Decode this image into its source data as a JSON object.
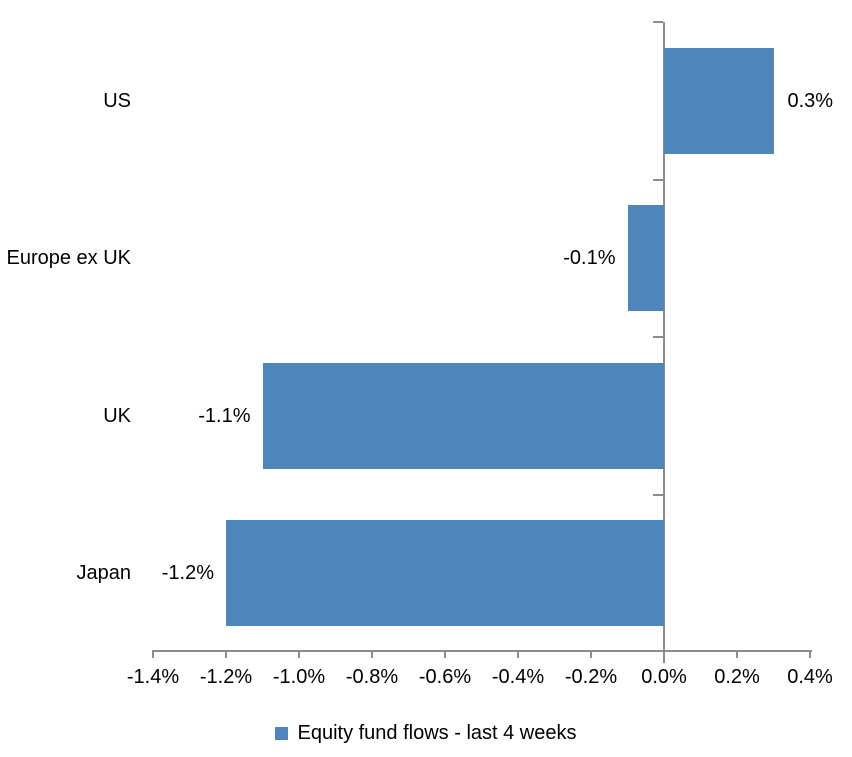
{
  "chart_data": {
    "type": "bar",
    "orientation": "horizontal",
    "title": "",
    "xlabel": "",
    "ylabel": "",
    "categories": [
      "US",
      "Europe ex UK",
      "UK",
      "Japan"
    ],
    "values": [
      0.3,
      -0.1,
      -1.1,
      -1.2
    ],
    "data_labels": [
      "0.3%",
      "-0.1%",
      "-1.1%",
      "-1.2%"
    ],
    "series_name": "Equity fund flows - last 4 weeks",
    "x_ticks": [
      "-1.4%",
      "-1.2%",
      "-1.0%",
      "-0.8%",
      "-0.6%",
      "-0.4%",
      "-0.2%",
      "0.0%",
      "0.2%",
      "0.4%"
    ],
    "x_tick_values": [
      -1.4,
      -1.2,
      -1.0,
      -0.8,
      -0.6,
      -0.4,
      -0.2,
      0.0,
      0.2,
      0.4
    ],
    "xlim": [
      -1.4,
      0.4
    ],
    "grid": false,
    "legend_position": "bottom-center",
    "colors": {
      "bar": "#4e86bc",
      "axis": "#8c8c8c",
      "text": "#000000",
      "background": "#ffffff"
    }
  }
}
